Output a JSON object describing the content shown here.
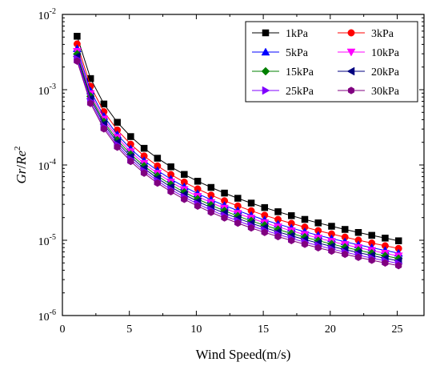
{
  "chart_data": {
    "type": "line",
    "title": "",
    "xlabel": "Wind Speed(m/s)",
    "ylabel_main": "Gr",
    "ylabel_sep": "/",
    "ylabel_den": "Re",
    "ylabel_exp": "2",
    "xlim": [
      0,
      27
    ],
    "ylim": [
      1e-06,
      0.01
    ],
    "yscale": "log",
    "grid": false,
    "legend_position": "top-right",
    "x_ticks": [
      {
        "value": 0,
        "label": "0"
      },
      {
        "value": 5,
        "label": "5"
      },
      {
        "value": 10,
        "label": "10"
      },
      {
        "value": 15,
        "label": "15"
      },
      {
        "value": 20,
        "label": "20"
      },
      {
        "value": 25,
        "label": "25"
      }
    ],
    "y_ticks": [
      {
        "value": 1e-06,
        "base": "10",
        "exp": "-6"
      },
      {
        "value": 1e-05,
        "base": "10",
        "exp": "-5"
      },
      {
        "value": 0.0001,
        "base": "10",
        "exp": "-4"
      },
      {
        "value": 0.001,
        "base": "10",
        "exp": "-3"
      },
      {
        "value": 0.01,
        "base": "10",
        "exp": "-2"
      }
    ],
    "x": [
      1.1,
      2.1,
      3.1,
      4.1,
      5.1,
      6.1,
      7.1,
      8.1,
      9.1,
      10.1,
      11.1,
      12.1,
      13.1,
      14.1,
      15.1,
      16.1,
      17.1,
      18.1,
      19.1,
      20.1,
      21.1,
      22.1,
      23.1,
      24.1,
      25.1
    ],
    "series": [
      {
        "name": "1kPa",
        "color": "#000000",
        "marker": "square",
        "k": 0.0062
      },
      {
        "name": "3kPa",
        "color": "#ff0000",
        "marker": "circle",
        "k": 0.0049
      },
      {
        "name": "5kPa",
        "color": "#0000ff",
        "marker": "triangle-up",
        "k": 0.00425
      },
      {
        "name": "10kPa",
        "color": "#ff00ff",
        "marker": "triangle-down",
        "k": 0.0039
      },
      {
        "name": "15kPa",
        "color": "#008000",
        "marker": "diamond",
        "k": 0.0036
      },
      {
        "name": "20kPa",
        "color": "#000080",
        "marker": "triangle-left",
        "k": 0.00335
      },
      {
        "name": "25kPa",
        "color": "#8000ff",
        "marker": "triangle-right",
        "k": 0.0031
      },
      {
        "name": "30kPa",
        "color": "#800080",
        "marker": "hexagon",
        "k": 0.0029
      }
    ]
  }
}
